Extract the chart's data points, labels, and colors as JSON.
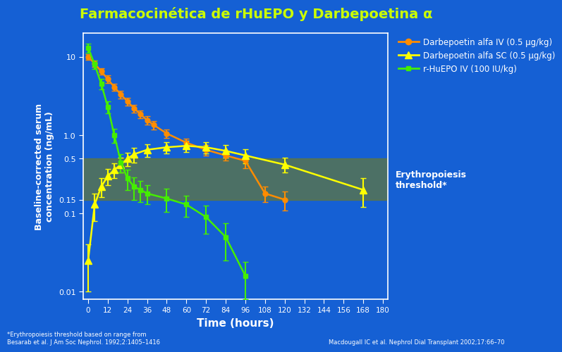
{
  "title": "Farmacocinética de rHuEPO y Darbepoetina α",
  "title_color": "#CCFF00",
  "bg_color": "#1560d4",
  "plot_bg_color": "#1560d4",
  "xlabel": "Time (hours)",
  "ylabel": "Baseline-corrected serum\nconcentration (ng/mL)",
  "xticks": [
    0,
    12,
    24,
    36,
    48,
    60,
    72,
    84,
    96,
    108,
    120,
    132,
    144,
    156,
    168,
    180
  ],
  "erythropoiesis_band": [
    0.15,
    0.5
  ],
  "erythropoiesis_band_color": "#6b7a2a",
  "erythropoiesis_band_alpha": 0.65,
  "erythropoiesis_label": "Erythropoiesis\nthreshold*",
  "legend_label_iv": "Darbepoetin alfa IV (0.5 μg/kg)",
  "legend_label_sc": "Darbepoetin alfa SC (0.5 μg/kg)",
  "legend_label_epo": "r-HuEPO IV (100 IU/kg)",
  "darb_iv_color": "#FF8C00",
  "darb_sc_color": "#FFFF00",
  "epo_color": "#44EE00",
  "darb_iv_x": [
    0,
    4,
    8,
    12,
    16,
    20,
    24,
    28,
    32,
    36,
    40,
    48,
    60,
    72,
    84,
    96,
    108,
    120
  ],
  "darb_iv_y": [
    10.0,
    8.2,
    6.5,
    5.2,
    4.1,
    3.3,
    2.7,
    2.2,
    1.85,
    1.55,
    1.35,
    1.05,
    0.8,
    0.65,
    0.55,
    0.47,
    0.18,
    0.15
  ],
  "darb_iv_yerr": [
    0.9,
    0.75,
    0.6,
    0.55,
    0.42,
    0.35,
    0.3,
    0.25,
    0.22,
    0.18,
    0.16,
    0.13,
    0.1,
    0.1,
    0.08,
    0.09,
    0.04,
    0.04
  ],
  "darb_sc_x": [
    0,
    4,
    8,
    12,
    16,
    20,
    24,
    28,
    36,
    48,
    60,
    72,
    84,
    96,
    120,
    168
  ],
  "darb_sc_y": [
    0.025,
    0.13,
    0.22,
    0.3,
    0.36,
    0.42,
    0.5,
    0.57,
    0.65,
    0.7,
    0.73,
    0.7,
    0.63,
    0.55,
    0.42,
    0.2
  ],
  "darb_sc_yerr": [
    0.015,
    0.05,
    0.06,
    0.07,
    0.08,
    0.09,
    0.1,
    0.12,
    0.12,
    0.12,
    0.12,
    0.12,
    0.11,
    0.11,
    0.09,
    0.08
  ],
  "epo_x": [
    0,
    4,
    8,
    12,
    16,
    20,
    24,
    28,
    32,
    36,
    48,
    60,
    72,
    84,
    96
  ],
  "epo_y": [
    13.0,
    8.0,
    4.5,
    2.3,
    1.0,
    0.45,
    0.28,
    0.22,
    0.2,
    0.18,
    0.155,
    0.13,
    0.09,
    0.05,
    0.016
  ],
  "epo_yerr": [
    1.8,
    1.0,
    0.7,
    0.4,
    0.2,
    0.12,
    0.08,
    0.07,
    0.06,
    0.05,
    0.05,
    0.04,
    0.035,
    0.025,
    0.008
  ],
  "footnote_left": "*Erythropoiesis threshold based on range from\nBesarab et al. J Am Soc Nephrol. 1992;2:1405–1416",
  "footnote_right": "Macdougall IC et al. Nephrol Dial Transplant 2002;17:66–70",
  "axis_color": "white",
  "tick_color": "white",
  "label_color": "white"
}
